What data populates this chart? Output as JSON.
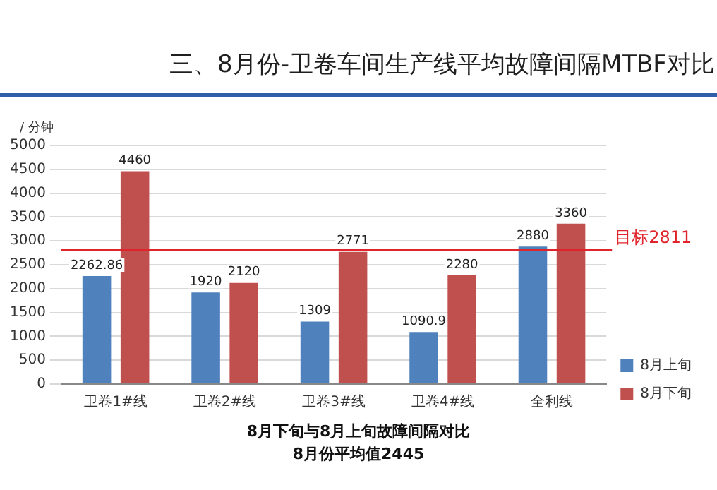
{
  "chart_data": {
    "type": "bar",
    "title": "三、8月份-卫卷车间生产线平均故障间隔MTBF对比",
    "ylabel": "/ 分钟",
    "categories": [
      "卫卷1#线",
      "卫卷2#线",
      "卫卷3#线",
      "卫卷4#线",
      "全利线"
    ],
    "series": [
      {
        "name": "8月上旬",
        "color": "#4f81bd",
        "values": [
          2262.86,
          1920,
          1309,
          1090.9,
          2880
        ]
      },
      {
        "name": "8月下旬",
        "color": "#c0504d",
        "values": [
          4460,
          2120,
          2771,
          2280,
          3360
        ]
      }
    ],
    "ylim": [
      0,
      5000
    ],
    "yticks": [
      0,
      500,
      1000,
      1500,
      2000,
      2500,
      3000,
      3500,
      4000,
      4500,
      5000
    ],
    "grid": "y",
    "legend": "right",
    "data_labels": true,
    "ref_lines": [
      {
        "axis": "y",
        "value": 2811,
        "label": "目标2811",
        "color": "#e0242b"
      }
    ],
    "annotations": [
      "8月下旬与8月上旬故障间隔对比",
      "8月份平均值2445"
    ]
  }
}
